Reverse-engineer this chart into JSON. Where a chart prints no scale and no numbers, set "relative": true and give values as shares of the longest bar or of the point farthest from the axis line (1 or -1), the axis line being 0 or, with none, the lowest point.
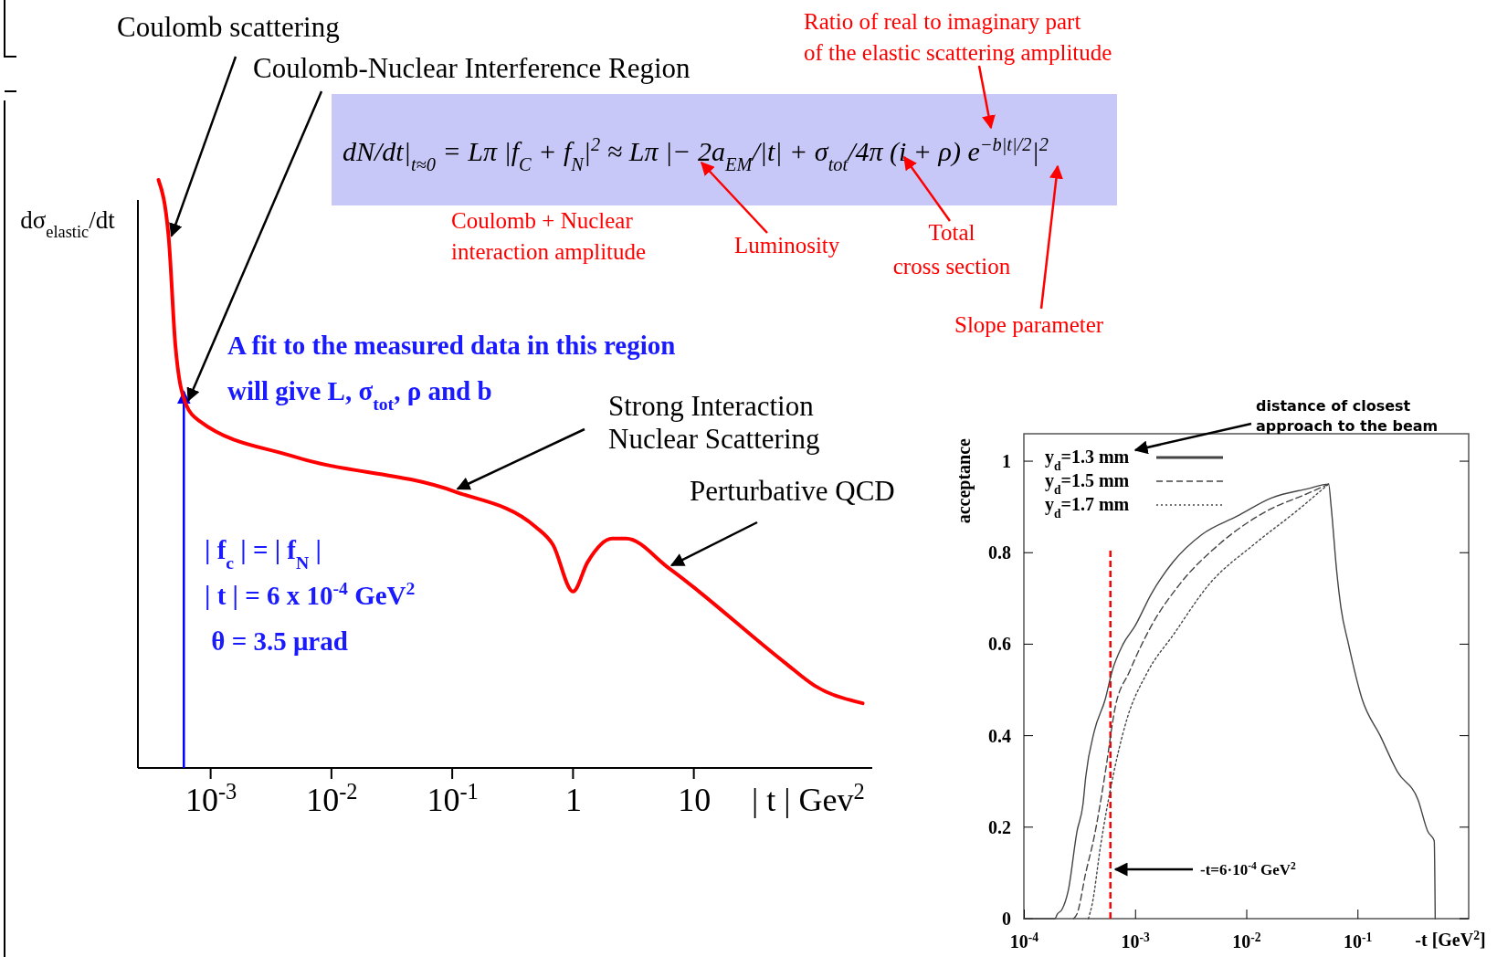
{
  "chart_data": [
    {
      "type": "line",
      "relative": true,
      "log": "x",
      "xlim": [
        0.00025,
        300
      ],
      "xticks": [
        {
          "value": 0.001,
          "label": "10$^{-3}$"
        },
        {
          "value": 0.01,
          "label": "10$^{-2}$"
        },
        {
          "value": 0.1,
          "label": "10$^{-1}$"
        },
        1,
        10
      ],
      "xlabel": "| t |  Gev$^{2}$",
      "ylabel": "dσ$_{elastic}$/dt",
      "series": [
        {
          "color": "#ff0000",
          "x": [
            0.00037,
            0.00045,
            0.00051,
            0.00062,
            0.00081,
            0.0048,
            0.105,
            0.49,
            0.68,
            1.0,
            1.32,
            2.1,
            2.75,
            6.2,
            56,
            100,
            250
          ],
          "values": [
            1,
            0.9,
            0.72,
            0.62,
            0.59,
            0.53,
            0.47,
            0.41,
            0.38,
            0.3,
            0.35,
            0.39,
            0.39,
            0.34,
            0.18,
            0.14,
            0.11
          ]
        }
      ],
      "ref_lines": [
        {
          "axis": "x",
          "value": 0.0006,
          "color": "#0000ff"
        }
      ],
      "annotations": [
        {
          "text": "Coulomb scattering",
          "x": 0.00045,
          "y": 0.9
        },
        {
          "text": "Coulomb-Nuclear Interference Region",
          "x": 0.00062,
          "y": 0.62
        },
        {
          "text": "Strong Interaction\nNuclear Scattering",
          "x": 0.105,
          "y": 0.47
        },
        {
          "text": "Perturbative QCD",
          "x": 6.2,
          "y": 0.34
        },
        "A fit to the measured data in this region\nwill give L, σ$_{tot}$, ρ and b",
        "| f$_{c}$ | = | f$_{N}$ |\n| t | = 6 x 10$^{-4}$ GeV$^{2}$\n θ = 3.5 μrad",
        "dN/dt|$_{t≈0}$ = Lπ |f$_{C}$ + f$_{N}$|$^{2}$ ≈ Lπ |− 2a$_{EM}$/|t| + σ$_{tot}$/4π (i + ρ) e$^{−b|t|/2}$|$^{2}$",
        "Ratio of real to imaginary part\nof the elastic scattering amplitude",
        "Coulomb + Nuclear\ninteraction amplitude",
        "Luminosity",
        "Total\ncross section",
        "Slope parameter"
      ]
    },
    {
      "type": "line",
      "log": "x",
      "xlim": [
        0.0001,
        1
      ],
      "ylim": [
        0,
        1.06
      ],
      "xticks": [
        {
          "value": 0.0001,
          "label": "10$^{-4}$"
        },
        {
          "value": 0.001,
          "label": "10$^{-3}$"
        },
        {
          "value": 0.01,
          "label": "10$^{-2}$"
        },
        {
          "value": 0.1,
          "label": "10$^{-1}$"
        }
      ],
      "yticks": [
        0,
        0.2,
        0.4,
        0.6,
        0.8,
        1
      ],
      "xlabel": "-t [GeV$^{2}$]",
      "ylabel": "acceptance",
      "legend": "top left",
      "series": [
        {
          "name": "y$_{d}$=1.3 mm",
          "color": "#444444",
          "line_style": "solid",
          "x": [
            0.0001,
            0.00019,
            0.0002,
            0.00022,
            0.00025,
            0.0003,
            0.00034,
            0.00036,
            0.00043,
            0.00054,
            0.00062,
            0.00078,
            0.001,
            0.0014,
            0.0022,
            0.004,
            0.0083,
            0.017,
            0.036,
            0.055,
            0.058,
            0.065,
            0.071,
            0.083,
            0.11,
            0.16,
            0.23,
            0.35,
            0.43,
            0.49,
            0.5
          ],
          "values": [
            0,
            0,
            0.01,
            0.02,
            0.06,
            0.19,
            0.25,
            0.31,
            0.41,
            0.48,
            0.54,
            0.6,
            0.64,
            0.71,
            0.78,
            0.84,
            0.88,
            0.92,
            0.94,
            0.95,
            0.9,
            0.76,
            0.68,
            0.6,
            0.48,
            0.4,
            0.32,
            0.26,
            0.19,
            0.17,
            0
          ]
        },
        {
          "name": "y$_{d}$=1.5 mm",
          "color": "#444444",
          "line_style": "dashed",
          "x": [
            0.00028,
            0.0003,
            0.00036,
            0.00043,
            0.00054,
            0.00066,
            0.00089,
            0.0014,
            0.0025,
            0.0058,
            0.015,
            0.036,
            0.055
          ],
          "values": [
            0,
            0.01,
            0.1,
            0.18,
            0.32,
            0.46,
            0.54,
            0.64,
            0.73,
            0.82,
            0.89,
            0.93,
            0.95
          ]
        },
        {
          "name": "y$_{d}$=1.7 mm",
          "color": "#444444",
          "line_style": "dotted",
          "x": [
            0.00038,
            0.00041,
            0.00049,
            0.00062,
            0.00083,
            0.0013,
            0.0022,
            0.0046,
            0.012,
            0.028,
            0.055
          ],
          "values": [
            0,
            0.03,
            0.16,
            0.3,
            0.43,
            0.54,
            0.62,
            0.73,
            0.82,
            0.89,
            0.95
          ]
        }
      ],
      "ref_lines": [
        {
          "axis": "x",
          "value": 0.0006,
          "color": "#ff0000",
          "line_style": "dashed"
        }
      ],
      "annotations": [
        "-t=6·10$^{-4}$ GeV$^{2}$",
        "distance of closest\napproach to the beam"
      ]
    }
  ]
}
